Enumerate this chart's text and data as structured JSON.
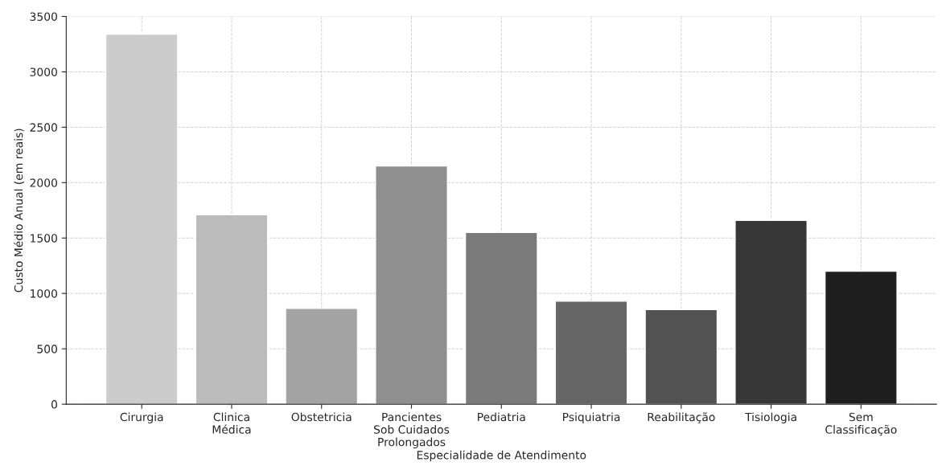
{
  "chart_data": {
    "type": "bar",
    "xlabel": "Especialidade de Atendimento",
    "ylabel": "Custo Médio Anual (em reais)",
    "categories": [
      "Cirurgia",
      "Clinica\nMédica",
      "Obstetricia",
      "Pancientes\nSob Cuidados\nProlongados",
      "Pediatria",
      "Psiquiatria",
      "Reabilitação",
      "Tisiologia",
      "Sem\nClassificação"
    ],
    "values": [
      3340,
      1710,
      865,
      2150,
      1550,
      930,
      855,
      1660,
      1200
    ],
    "colors": [
      "#cccccc",
      "#bbbbbb",
      "#a3a3a3",
      "#8f8f8f",
      "#7a7a7a",
      "#666666",
      "#525252",
      "#373737",
      "#1f1f1f"
    ],
    "ylim": [
      0,
      3500
    ],
    "yticks": [
      0,
      500,
      1000,
      1500,
      2000,
      2500,
      3000,
      3500
    ],
    "grid": true
  }
}
